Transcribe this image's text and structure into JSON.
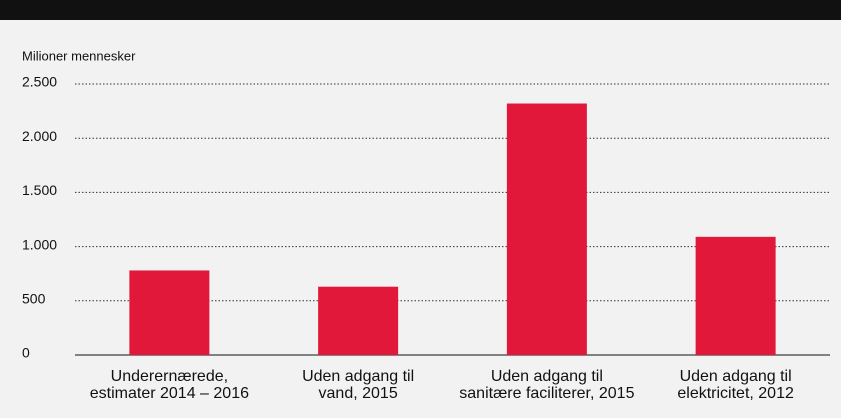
{
  "chart_data": {
    "type": "bar",
    "y_axis_label": "Milioner mennesker",
    "categories": [
      [
        "Underernærede,",
        "estimater 2014 – 2016"
      ],
      [
        "Uden adgang til",
        "vand, 2015"
      ],
      [
        "Uden adgang til",
        "sanitære faciliterer, 2015"
      ],
      [
        "Uden adgang til",
        "elektricitet, 2012"
      ]
    ],
    "values": [
      780,
      630,
      2320,
      1090
    ],
    "color": "#e2183a",
    "ylim": [
      0,
      2500
    ],
    "yticks": [
      0,
      500,
      {
        "value": 1000,
        "label": "1.000"
      },
      {
        "value": 1500,
        "label": "1.500"
      },
      {
        "value": 2000,
        "label": "2.000"
      },
      {
        "value": 2500,
        "label": "2.500"
      }
    ],
    "grid": true
  }
}
